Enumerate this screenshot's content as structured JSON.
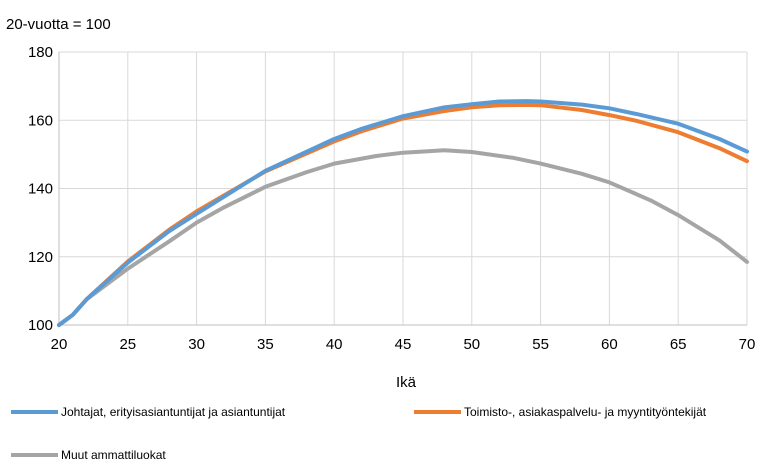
{
  "chart_data": {
    "type": "line",
    "title": "",
    "ylabel": "20-vuotta = 100",
    "xlabel": "Ikä",
    "xlim": [
      20,
      70
    ],
    "ylim": [
      100,
      180
    ],
    "x_ticks": [
      20,
      25,
      30,
      35,
      40,
      45,
      50,
      55,
      60,
      65,
      70
    ],
    "y_ticks": [
      100,
      120,
      140,
      160,
      180
    ],
    "grid": true,
    "legend_position": "bottom",
    "series": [
      {
        "name": "Johtajat, erityisasiantuntijat ja asiantuntijat",
        "color": "#5B9BD5",
        "points": [
          [
            20,
            100
          ],
          [
            21,
            103
          ],
          [
            22,
            107.5
          ],
          [
            25,
            118.3
          ],
          [
            28,
            127.5
          ],
          [
            30,
            132.6
          ],
          [
            35,
            145.2
          ],
          [
            40,
            154.5
          ],
          [
            42,
            157.5
          ],
          [
            45,
            161.2
          ],
          [
            48,
            163.8
          ],
          [
            50,
            164.7
          ],
          [
            52,
            165.5
          ],
          [
            54,
            165.6
          ],
          [
            55,
            165.5
          ],
          [
            58,
            164.6
          ],
          [
            60,
            163.5
          ],
          [
            62,
            161.8
          ],
          [
            65,
            159
          ],
          [
            68,
            154.5
          ],
          [
            70,
            150.8
          ]
        ]
      },
      {
        "name": "Toimisto-, asiakaspalvelu- ja myyntityöntekijät",
        "color": "#ED7D31",
        "points": [
          [
            20,
            100
          ],
          [
            21,
            103
          ],
          [
            22,
            107.5
          ],
          [
            25,
            118.6
          ],
          [
            28,
            127.9
          ],
          [
            30,
            133.3
          ],
          [
            35,
            145
          ],
          [
            40,
            153.8
          ],
          [
            42,
            156.8
          ],
          [
            45,
            160.5
          ],
          [
            48,
            162.7
          ],
          [
            50,
            163.8
          ],
          [
            52,
            164.4
          ],
          [
            54,
            164.5
          ],
          [
            55,
            164.4
          ],
          [
            58,
            163
          ],
          [
            60,
            161.5
          ],
          [
            62,
            159.8
          ],
          [
            65,
            156.5
          ],
          [
            68,
            151.8
          ],
          [
            70,
            148
          ]
        ]
      },
      {
        "name": "Muut ammattiluokat",
        "color": "#A5A5A5",
        "points": [
          [
            20,
            100
          ],
          [
            21,
            103
          ],
          [
            22,
            107.5
          ],
          [
            25,
            116.5
          ],
          [
            28,
            124.5
          ],
          [
            30,
            130
          ],
          [
            32,
            134.5
          ],
          [
            35,
            140.5
          ],
          [
            38,
            144.8
          ],
          [
            40,
            147.3
          ],
          [
            43,
            149.5
          ],
          [
            45,
            150.5
          ],
          [
            48,
            151.2
          ],
          [
            50,
            150.7
          ],
          [
            53,
            149
          ],
          [
            55,
            147.3
          ],
          [
            58,
            144.3
          ],
          [
            60,
            141.8
          ],
          [
            63,
            136.5
          ],
          [
            65,
            132.2
          ],
          [
            68,
            124.8
          ],
          [
            70,
            118.5
          ]
        ]
      }
    ]
  }
}
